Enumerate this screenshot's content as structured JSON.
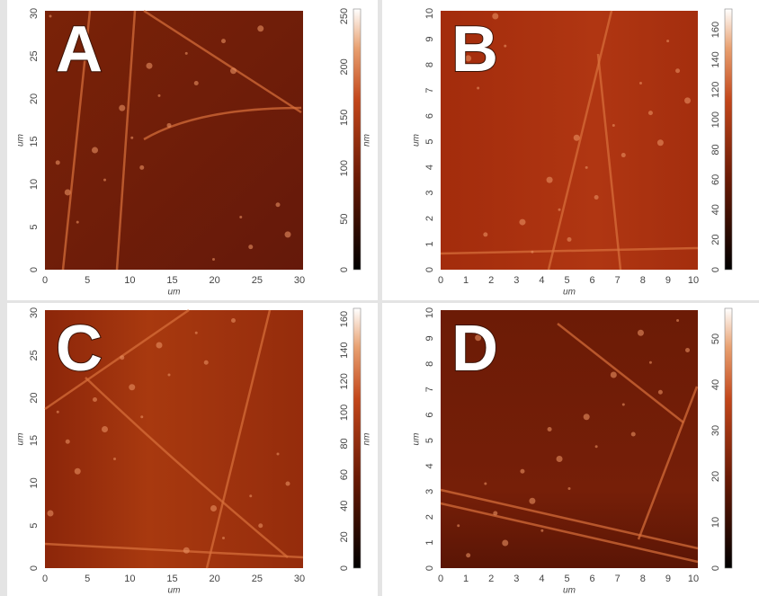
{
  "panels": [
    {
      "label": "A",
      "x_label": "um",
      "y_label": "um",
      "colorbar_label": "nm",
      "xticks": [
        "0",
        "5",
        "10",
        "15",
        "20",
        "25",
        "30"
      ],
      "yticks": [
        "0",
        "5",
        "10",
        "15",
        "20",
        "25",
        "30"
      ],
      "colorbar_ticks": [
        "0",
        "50",
        "100",
        "150",
        "200",
        "250"
      ]
    },
    {
      "label": "B",
      "x_label": "um",
      "y_label": "um",
      "xticks": [
        "0",
        "1",
        "2",
        "3",
        "4",
        "5",
        "6",
        "7",
        "8",
        "9",
        "10"
      ],
      "yticks": [
        "0",
        "1",
        "2",
        "3",
        "4",
        "5",
        "6",
        "7",
        "8",
        "9",
        "10"
      ],
      "colorbar_ticks": [
        "0",
        "20",
        "40",
        "60",
        "80",
        "100",
        "120",
        "140",
        "160"
      ]
    },
    {
      "label": "C",
      "x_label": "um",
      "y_label": "um",
      "colorbar_label": "nm",
      "xticks": [
        "0",
        "5",
        "10",
        "15",
        "20",
        "25",
        "30"
      ],
      "yticks": [
        "0",
        "5",
        "10",
        "15",
        "20",
        "25",
        "30"
      ],
      "colorbar_ticks": [
        "0",
        "20",
        "40",
        "60",
        "80",
        "100",
        "120",
        "140",
        "160"
      ]
    },
    {
      "label": "D",
      "x_label": "um",
      "y_label": "um",
      "xticks": [
        "0",
        "1",
        "2",
        "3",
        "4",
        "5",
        "6",
        "7",
        "8",
        "9",
        "10"
      ],
      "yticks": [
        "0",
        "1",
        "2",
        "3",
        "4",
        "5",
        "6",
        "7",
        "8",
        "9",
        "10"
      ],
      "colorbar_ticks": [
        "0",
        "10",
        "20",
        "30",
        "40",
        "50"
      ]
    }
  ]
}
